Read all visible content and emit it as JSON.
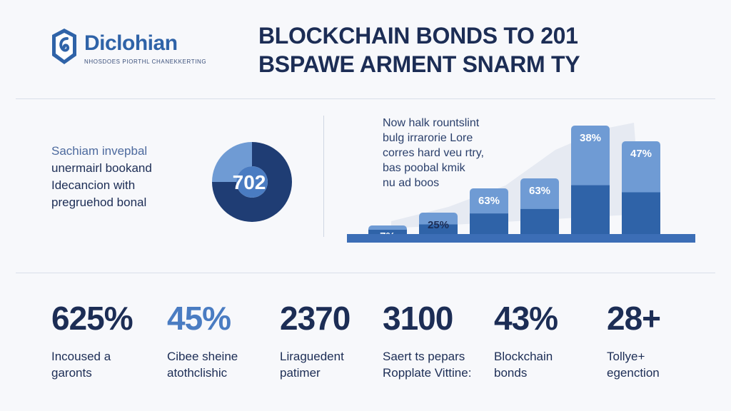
{
  "brand": {
    "name": "Diclohian",
    "tagline": "NHOSDOES PIORTHL CHANEKKERTING",
    "color": "#2f63a8"
  },
  "title": {
    "line1": "BLOCKCHAIN BONDS TO 201",
    "line2": "BSPAWE ARMENT SNARM TY"
  },
  "left_text": [
    "Sachiam invepbal",
    "unermairl bookand",
    "Idecancion with",
    "pregruehod bonal"
  ],
  "donut": {
    "label": "702",
    "fraction": 0.75,
    "colors": {
      "dark": "#1f3d74",
      "light": "#6f9bd4",
      "mid": "#4a7cc2"
    }
  },
  "chart_note": [
    "Now halk rountslint",
    "bulg irrarorie Lore",
    "corres hard veu rtry,",
    "bas poobal kmik",
    "nu ad boos"
  ],
  "chart_data": {
    "type": "bar",
    "categories": [
      "",
      "",
      "",
      "",
      "",
      ""
    ],
    "values": [
      7,
      25,
      63,
      63,
      38,
      47
    ],
    "labels": [
      "7%",
      "25%",
      "63%",
      "63%",
      "38%",
      "47%"
    ],
    "grid": false,
    "colors": {
      "dark": "#2f63a8",
      "light": "#6f9bd4",
      "base": "#3c6eb6"
    }
  },
  "stats": [
    {
      "value": "625%",
      "label": [
        "Incoused a",
        "garonts"
      ]
    },
    {
      "value": "45%",
      "label": [
        "Cibee sheine",
        "atothclishic"
      ]
    },
    {
      "value": "2370",
      "label": [
        "Liraguedent",
        "patimer"
      ]
    },
    {
      "value": "3100",
      "label": [
        "Saert ts pepars",
        "Ropplate Vittine:"
      ]
    },
    {
      "value": "43%",
      "label": [
        "Blockchain",
        "bonds"
      ]
    },
    {
      "value": "28+",
      "label": [
        "Tollye+",
        "egenction"
      ]
    }
  ]
}
